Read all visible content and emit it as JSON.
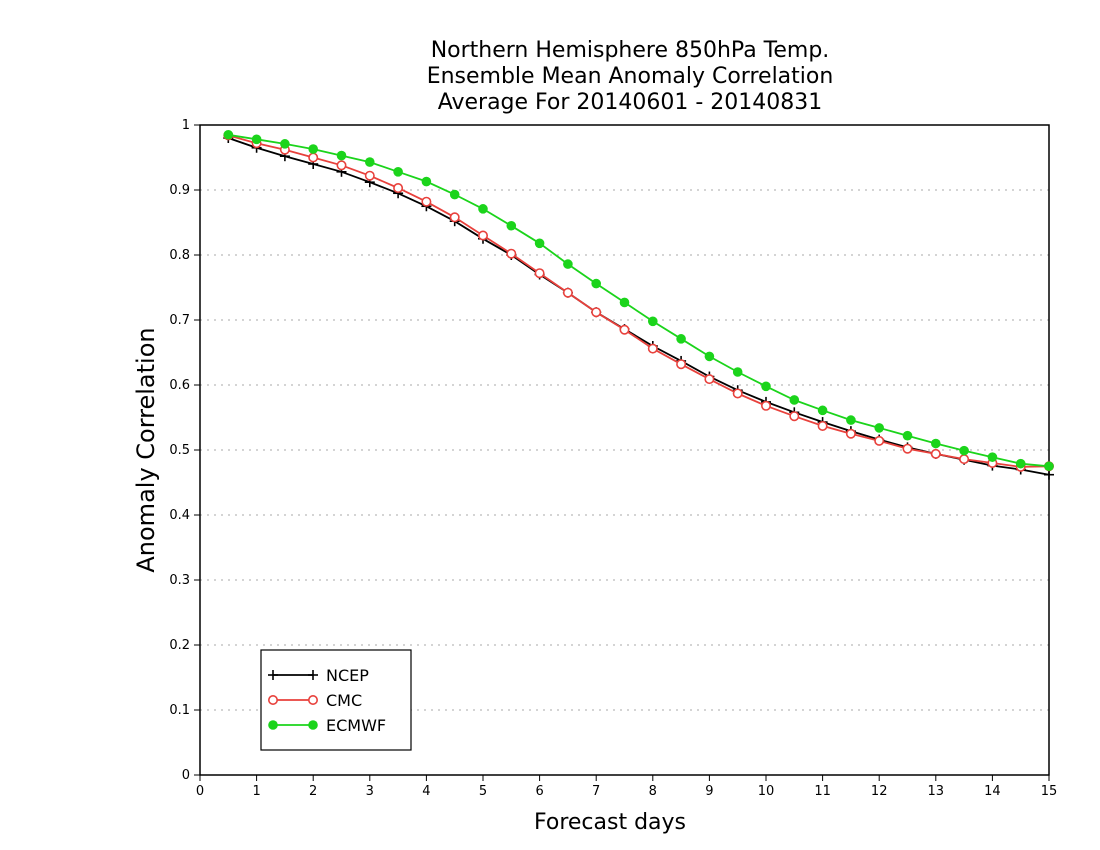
{
  "chart_data": {
    "type": "line",
    "title": [
      "Northern Hemisphere 850hPa Temp.",
      "Ensemble Mean Anomaly Correlation",
      "Average For 20140601 - 20140831"
    ],
    "xlabel": "Forecast days",
    "ylabel": "Anomaly Correlation",
    "xlim": [
      0,
      15
    ],
    "ylim": [
      0,
      1
    ],
    "xticks": [
      "0",
      "1",
      "2",
      "3",
      "4",
      "5",
      "6",
      "7",
      "8",
      "9",
      "10",
      "11",
      "12",
      "13",
      "14",
      "15"
    ],
    "yticks": [
      "0",
      "0.1",
      "0.2",
      "0.3",
      "0.4",
      "0.5",
      "0.6",
      "0.7",
      "0.8",
      "0.9",
      "1"
    ],
    "grid": true,
    "legend_position": "bottom-left",
    "x": [
      0.5,
      1,
      1.5,
      2,
      2.5,
      3,
      3.5,
      4,
      4.5,
      5,
      5.5,
      6,
      6.5,
      7,
      7.5,
      8,
      8.5,
      9,
      9.5,
      10,
      10.5,
      11,
      11.5,
      12,
      12.5,
      13,
      13.5,
      14,
      14.5,
      15
    ],
    "series": [
      {
        "name": "NCEP",
        "color": "#000000",
        "marker": "plus",
        "values": [
          0.98,
          0.965,
          0.952,
          0.94,
          0.928,
          0.912,
          0.895,
          0.875,
          0.852,
          0.825,
          0.8,
          0.77,
          0.742,
          0.712,
          0.686,
          0.66,
          0.637,
          0.613,
          0.592,
          0.574,
          0.558,
          0.543,
          0.529,
          0.516,
          0.504,
          0.494,
          0.485,
          0.476,
          0.47,
          0.462
        ]
      },
      {
        "name": "CMC",
        "color": "#e8413c",
        "marker": "open-circle",
        "values": [
          0.984,
          0.972,
          0.962,
          0.95,
          0.938,
          0.922,
          0.903,
          0.882,
          0.858,
          0.83,
          0.802,
          0.772,
          0.742,
          0.712,
          0.685,
          0.656,
          0.632,
          0.609,
          0.587,
          0.568,
          0.552,
          0.537,
          0.525,
          0.514,
          0.502,
          0.494,
          0.486,
          0.48,
          0.474,
          0.475
        ]
      },
      {
        "name": "ECMWF",
        "color": "#1bd41b",
        "marker": "filled-circle",
        "values": [
          0.985,
          0.978,
          0.971,
          0.963,
          0.953,
          0.943,
          0.928,
          0.913,
          0.893,
          0.871,
          0.845,
          0.818,
          0.786,
          0.756,
          0.727,
          0.698,
          0.671,
          0.644,
          0.62,
          0.598,
          0.577,
          0.561,
          0.546,
          0.534,
          0.522,
          0.51,
          0.499,
          0.489,
          0.479,
          0.475
        ]
      }
    ]
  }
}
